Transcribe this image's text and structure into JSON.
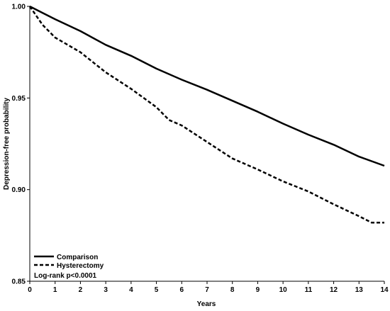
{
  "chart_data": {
    "type": "line",
    "title": "",
    "xlabel": "Years",
    "ylabel": "Depression-free probability",
    "xlim": [
      0,
      14
    ],
    "ylim": [
      0.85,
      1.0
    ],
    "xticks": [
      "0",
      "1",
      "2",
      "3",
      "4",
      "5",
      "6",
      "7",
      "8",
      "9",
      "10",
      "11",
      "12",
      "13",
      "14"
    ],
    "yticks": [
      "0.85",
      "0.90",
      "0.95",
      "1.00"
    ],
    "grid": false,
    "legend_position": "bottom-left",
    "annotation": "Log-rank p<0.0001",
    "series": [
      {
        "name": "Comparison",
        "style": "solid",
        "color": "#000000",
        "points": [
          [
            0,
            1.0
          ],
          [
            0.5,
            0.9965
          ],
          [
            1,
            0.993
          ],
          [
            2,
            0.9865
          ],
          [
            3,
            0.979
          ],
          [
            4,
            0.973
          ],
          [
            5,
            0.966
          ],
          [
            6,
            0.96
          ],
          [
            7,
            0.9545
          ],
          [
            8,
            0.9485
          ],
          [
            9,
            0.9425
          ],
          [
            10,
            0.936
          ],
          [
            11,
            0.93
          ],
          [
            12,
            0.9245
          ],
          [
            13,
            0.918
          ],
          [
            14,
            0.913
          ]
        ]
      },
      {
        "name": "Hysterectomy",
        "style": "dashed",
        "color": "#000000",
        "points": [
          [
            0,
            1.0
          ],
          [
            0.5,
            0.99
          ],
          [
            1,
            0.983
          ],
          [
            2,
            0.975
          ],
          [
            3,
            0.964
          ],
          [
            4,
            0.955
          ],
          [
            5,
            0.945
          ],
          [
            5.5,
            0.938
          ],
          [
            6,
            0.935
          ],
          [
            7,
            0.926
          ],
          [
            8,
            0.917
          ],
          [
            9,
            0.911
          ],
          [
            10,
            0.9045
          ],
          [
            11,
            0.899
          ],
          [
            12,
            0.892
          ],
          [
            13,
            0.8855
          ],
          [
            13.5,
            0.882
          ],
          [
            14,
            0.882
          ]
        ]
      }
    ]
  }
}
